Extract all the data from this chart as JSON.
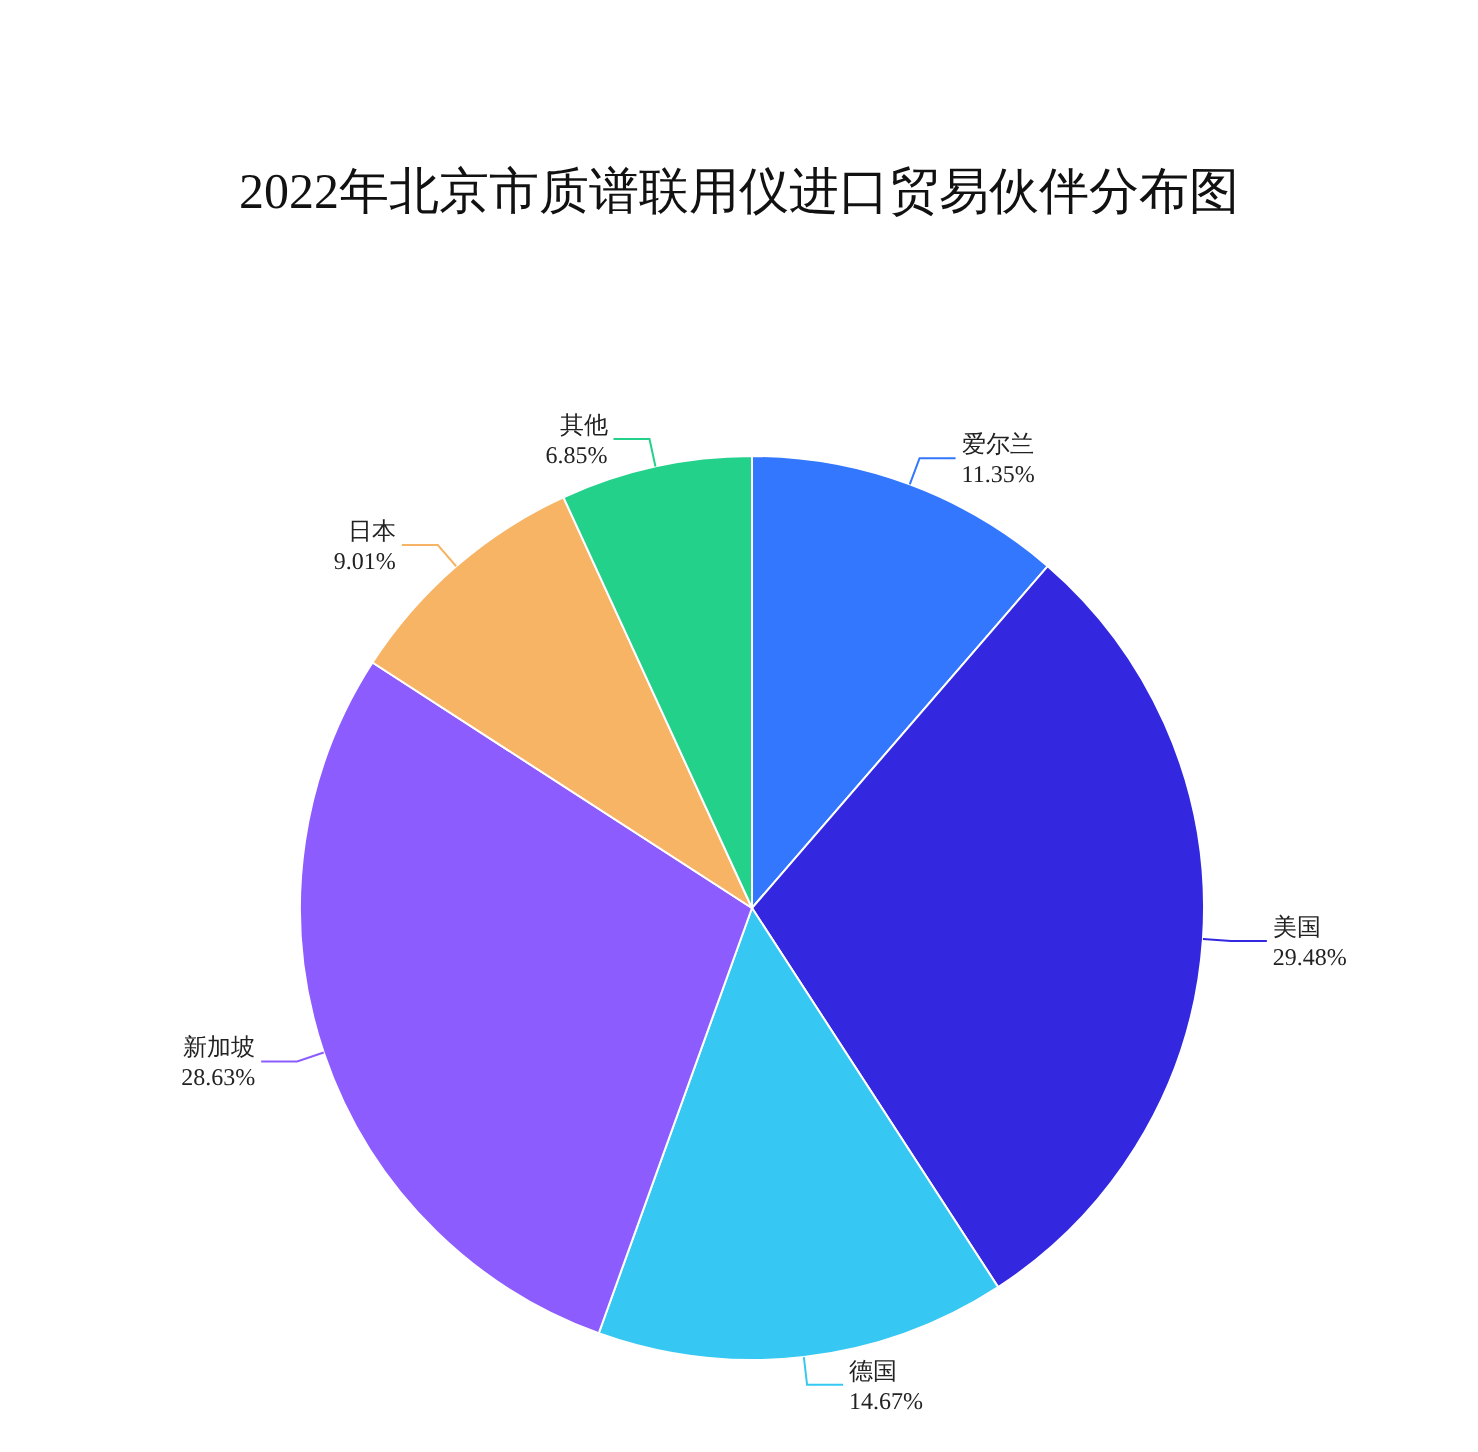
{
  "chart_data": {
    "type": "pie",
    "title": "2022年北京市质谱联用仪进口贸易伙伴分布图",
    "categories": [
      "爱尔兰",
      "美国",
      "德国",
      "新加坡",
      "日本",
      "其他"
    ],
    "values": [
      11.35,
      29.48,
      14.67,
      28.63,
      9.01,
      6.85
    ],
    "colors": [
      "#3377ff",
      "#3328e0",
      "#36c8f2",
      "#8c5cff",
      "#f7b465",
      "#23d18b"
    ],
    "value_labels": [
      "11.35%",
      "29.48%",
      "14.67%",
      "28.63%",
      "9.01%",
      "6.85%"
    ]
  }
}
